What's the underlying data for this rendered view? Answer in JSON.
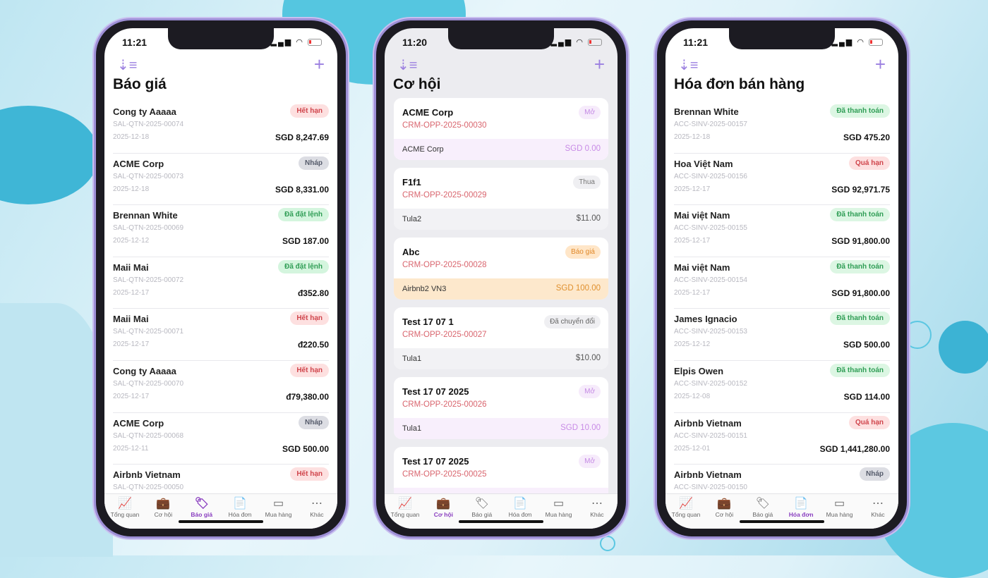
{
  "tabs": [
    {
      "label": "Tổng quan",
      "icon": "chart-icon"
    },
    {
      "label": "Cơ hội",
      "icon": "briefcase-icon"
    },
    {
      "label": "Báo giá",
      "icon": "tag-icon"
    },
    {
      "label": "Hóa đơn",
      "icon": "document-icon"
    },
    {
      "label": "Mua hàng",
      "icon": "card-icon"
    },
    {
      "label": "Khác",
      "icon": "more-icon"
    }
  ],
  "status_colors": {
    "Hết hạn": [
      "#fde0e0",
      "#d0454c"
    ],
    "Quá hạn": [
      "#fde0e0",
      "#d0454c"
    ],
    "Nháp": [
      "#dcdde3",
      "#555b6b"
    ],
    "Đã đặt lệnh": [
      "#d4f5de",
      "#2f9d55"
    ],
    "Đã thanh toán": [
      "#dcf6e3",
      "#2f9d55"
    ],
    "Mở": [
      "#f6ebfb",
      "#c489e4"
    ],
    "Thua": [
      "#efeff2",
      "#777777"
    ],
    "Báo giá": [
      "#ffe6c8",
      "#e0892a"
    ],
    "Đã chuyển đổi": [
      "#efeff2",
      "#666666"
    ]
  },
  "phones": [
    {
      "time": "11:21",
      "title": "Báo giá",
      "active_tab": 2,
      "kind": "list",
      "items": [
        {
          "name": "Cong ty Aaaaa",
          "id": "SAL-QTN-2025-00074",
          "date": "2025-12-18",
          "amount": "SGD 8,247.69",
          "status": "Hết hạn"
        },
        {
          "name": "ACME Corp",
          "id": "SAL-QTN-2025-00073",
          "date": "2025-12-18",
          "amount": "SGD 8,331.00",
          "status": "Nháp"
        },
        {
          "name": "Brennan White",
          "id": "SAL-QTN-2025-00069",
          "date": "2025-12-12",
          "amount": "SGD 187.00",
          "status": "Đã đặt lệnh"
        },
        {
          "name": "Maii Mai",
          "id": "SAL-QTN-2025-00072",
          "date": "2025-12-17",
          "amount": "đ352.80",
          "status": "Đã đặt lệnh"
        },
        {
          "name": "Maii Mai",
          "id": "SAL-QTN-2025-00071",
          "date": "2025-12-17",
          "amount": "đ220.50",
          "status": "Hết hạn"
        },
        {
          "name": "Cong ty Aaaaa",
          "id": "SAL-QTN-2025-00070",
          "date": "2025-12-17",
          "amount": "đ79,380.00",
          "status": "Hết hạn"
        },
        {
          "name": "ACME Corp",
          "id": "SAL-QTN-2025-00068",
          "date": "2025-12-11",
          "amount": "SGD 500.00",
          "status": "Nháp"
        },
        {
          "name": "Airbnb Vietnam",
          "id": "SAL-QTN-2025-00050",
          "date": "",
          "amount": "",
          "status": "Hết hạn"
        }
      ]
    },
    {
      "time": "11:20",
      "title": "Cơ hội",
      "active_tab": 1,
      "kind": "cards",
      "items": [
        {
          "name": "ACME Corp",
          "id": "CRM-OPP-2025-00030",
          "account": "ACME Corp",
          "amount": "SGD 0.00",
          "status": "Mở"
        },
        {
          "name": "F1f1",
          "id": "CRM-OPP-2025-00029",
          "account": "Tula2",
          "amount": "$11.00",
          "status": "Thua"
        },
        {
          "name": "Abc",
          "id": "CRM-OPP-2025-00028",
          "account": "Airbnb2 VN3",
          "amount": "SGD 100.00",
          "status": "Báo giá"
        },
        {
          "name": "Test 17 07 1",
          "id": "CRM-OPP-2025-00027",
          "account": "Tula1",
          "amount": "$10.00",
          "status": "Đã chuyển đổi"
        },
        {
          "name": "Test 17 07 2025",
          "id": "CRM-OPP-2025-00026",
          "account": "Tula1",
          "amount": "SGD 10.00",
          "status": "Mở"
        },
        {
          "name": "Test 17 07 2025",
          "id": "CRM-OPP-2025-00025",
          "account": "",
          "amount": "",
          "status": "Mở"
        }
      ]
    },
    {
      "time": "11:21",
      "title": "Hóa đơn bán hàng",
      "active_tab": 3,
      "kind": "list",
      "items": [
        {
          "name": "Brennan White",
          "id": "ACC-SINV-2025-00157",
          "date": "2025-12-18",
          "amount": "SGD 475.20",
          "status": "Đã thanh toán"
        },
        {
          "name": "Hoa Việt Nam",
          "id": "ACC-SINV-2025-00156",
          "date": "2025-12-17",
          "amount": "SGD 92,971.75",
          "status": "Quá hạn"
        },
        {
          "name": "Mai việt Nam",
          "id": "ACC-SINV-2025-00155",
          "date": "2025-12-17",
          "amount": "SGD 91,800.00",
          "status": "Đã thanh toán"
        },
        {
          "name": "Mai việt Nam",
          "id": "ACC-SINV-2025-00154",
          "date": "2025-12-17",
          "amount": "SGD 91,800.00",
          "status": "Đã thanh toán"
        },
        {
          "name": "James Ignacio",
          "id": "ACC-SINV-2025-00153",
          "date": "2025-12-12",
          "amount": "SGD 500.00",
          "status": "Đã thanh toán"
        },
        {
          "name": "Elpis Owen",
          "id": "ACC-SINV-2025-00152",
          "date": "2025-12-08",
          "amount": "SGD 114.00",
          "status": "Đã thanh toán"
        },
        {
          "name": "Airbnb Vietnam",
          "id": "ACC-SINV-2025-00151",
          "date": "2025-12-01",
          "amount": "SGD 1,441,280.00",
          "status": "Quá hạn"
        },
        {
          "name": "Airbnb Vietnam",
          "id": "ACC-SINV-2025-00150",
          "date": "",
          "amount": "",
          "status": "Nháp"
        }
      ]
    }
  ]
}
